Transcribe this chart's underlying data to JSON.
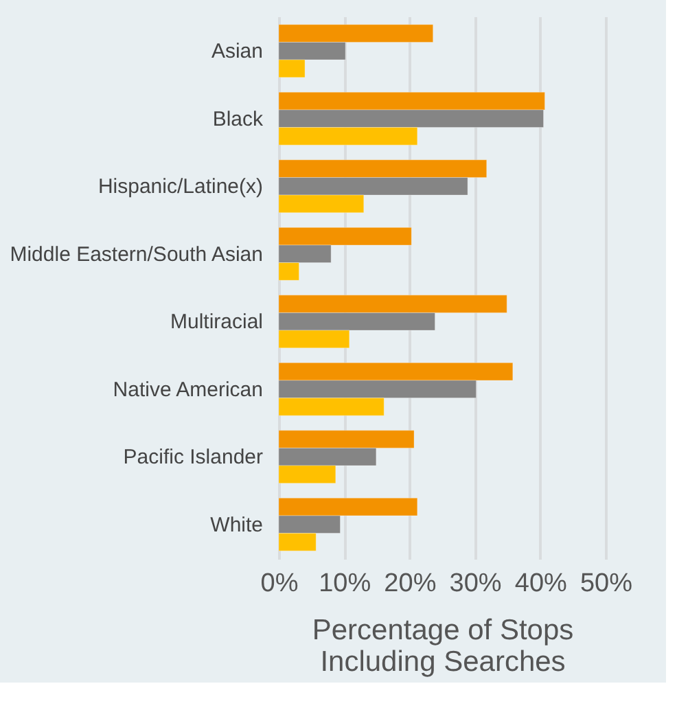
{
  "chart_data": {
    "type": "bar",
    "orientation": "horizontal",
    "xlabel": "Percentage of Stops Including Searches",
    "categories": [
      "Asian",
      "Black",
      "Hispanic/Latine(x)",
      "Middle Eastern/South Asian",
      "Multiracial",
      "Native American",
      "Pacific Islander",
      "White"
    ],
    "series": [
      {
        "color": "#f39200",
        "values": [
          23.6,
          40.7,
          31.8,
          20.3,
          34.9,
          35.8,
          20.7,
          21.2
        ]
      },
      {
        "color": "#858585",
        "values": [
          10.2,
          40.5,
          28.9,
          8.0,
          23.9,
          30.2,
          14.9,
          9.4
        ]
      },
      {
        "color": "#ffc000",
        "values": [
          4.0,
          21.2,
          13.0,
          3.1,
          10.8,
          16.1,
          8.7,
          5.7
        ]
      }
    ],
    "xlim": [
      0,
      50
    ],
    "xticks": [
      {
        "value": 0,
        "label": "0%"
      },
      {
        "value": 10,
        "label": "10%"
      },
      {
        "value": 20,
        "label": "20%"
      },
      {
        "value": 30,
        "label": "30%"
      },
      {
        "value": 40,
        "label": "40%"
      },
      {
        "value": 50,
        "label": "50%"
      }
    ],
    "grid": "x",
    "legend": false
  }
}
